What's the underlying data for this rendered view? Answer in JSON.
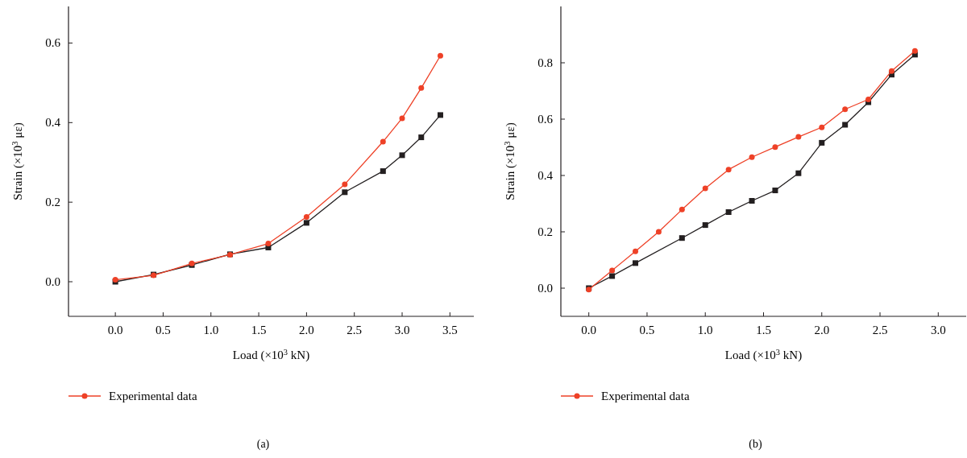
{
  "chart_data": [
    {
      "type": "line",
      "xlabel": "Load (×10$^{3}$ kN)",
      "ylabel": "Strain (×10$^{3}$ με)",
      "annotations": [
        "(a)"
      ],
      "xlim": [
        -0.49,
        3.75
      ],
      "ylim": [
        -0.087,
        0.692
      ],
      "xticks": [
        {
          "value": 0,
          "label": "0.0"
        },
        0.5,
        {
          "value": 1,
          "label": "1.0"
        },
        1.5,
        {
          "value": 2,
          "label": "2.0"
        },
        2.5,
        {
          "value": 3,
          "label": "3.0"
        },
        3.5
      ],
      "yticks": [
        {
          "value": 0,
          "label": "0.0"
        },
        0.2,
        0.4,
        0.6
      ],
      "legend": "bottom",
      "grid": false,
      "line_style": "solid",
      "series": [
        {
          "color": "#231f20",
          "marker": "square",
          "x": [
            0,
            0.4,
            0.8,
            1.2,
            1.6,
            2.0,
            2.4,
            2.8,
            3.0,
            3.2,
            3.4
          ],
          "values": [
            0,
            0.018,
            0.042,
            0.069,
            0.086,
            0.148,
            0.225,
            0.278,
            0.318,
            0.363,
            0.419
          ]
        },
        {
          "name": "Experimental data",
          "color": "#ee4127",
          "marker": "circle",
          "x": [
            0,
            0.4,
            0.8,
            1.2,
            1.6,
            2.0,
            2.4,
            2.8,
            3.0,
            3.2,
            3.4
          ],
          "values": [
            0.005,
            0.016,
            0.046,
            0.068,
            0.096,
            0.163,
            0.245,
            0.352,
            0.411,
            0.487,
            0.568
          ]
        }
      ]
    },
    {
      "type": "line",
      "xlabel": "Load (×10$^{3}$ kN)",
      "ylabel": "Strain (×10$^{3}$ με)",
      "annotations": [
        "(b)"
      ],
      "xlim": [
        -0.24,
        3.24
      ],
      "ylim": [
        -0.1,
        1.0
      ],
      "xticks": [
        {
          "value": 0,
          "label": "0.0"
        },
        0.5,
        {
          "value": 1,
          "label": "1.0"
        },
        1.5,
        {
          "value": 2,
          "label": "2.0"
        },
        2.5,
        {
          "value": 3,
          "label": "3.0"
        }
      ],
      "yticks": [
        {
          "value": 0,
          "label": "0.0"
        },
        0.2,
        0.4,
        0.6,
        0.8
      ],
      "legend": "bottom",
      "grid": false,
      "line_style": "solid",
      "series": [
        {
          "color": "#231f20",
          "marker": "square",
          "x": [
            0,
            0.2,
            0.4,
            0.8,
            1.0,
            1.2,
            1.4,
            1.6,
            1.8,
            2.0,
            2.2,
            2.4,
            2.6,
            2.8
          ],
          "values": [
            0,
            0.043,
            0.089,
            0.178,
            0.224,
            0.27,
            0.31,
            0.347,
            0.408,
            0.516,
            0.58,
            0.66,
            0.758,
            0.829
          ]
        },
        {
          "name": "Experimental data",
          "color": "#ee4127",
          "marker": "circle",
          "x": [
            0,
            0.2,
            0.4,
            0.6,
            0.8,
            1.0,
            1.2,
            1.4,
            1.6,
            1.8,
            2.0,
            2.2,
            2.4,
            2.6,
            2.8
          ],
          "values": [
            -0.005,
            0.063,
            0.131,
            0.2,
            0.279,
            0.354,
            0.421,
            0.465,
            0.501,
            0.537,
            0.571,
            0.635,
            0.67,
            0.771,
            0.842
          ]
        }
      ]
    }
  ]
}
